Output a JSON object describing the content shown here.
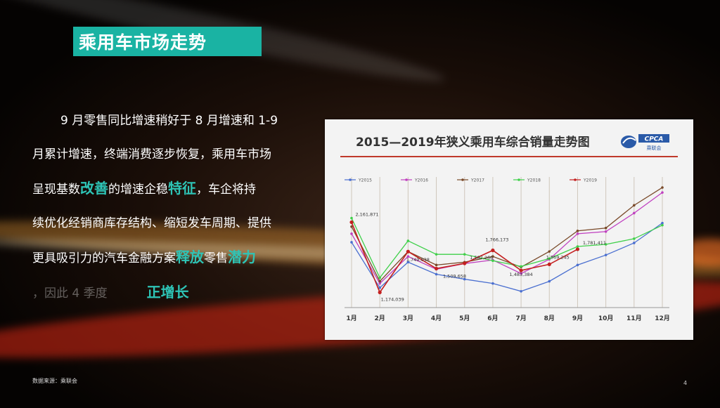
{
  "slide": {
    "title": "乘用车市场走势",
    "source": "数据来源：乘联会",
    "page_number": "4"
  },
  "paragraph": {
    "line1": "9 月零售同比增速稍好于 8 月增速和 1-9",
    "line2": "月累计增速，终端消费逐步恢复，乘用车市场",
    "line3_a": "呈现基数",
    "line3_hl1": "改善",
    "line3_b": "的增速企稳",
    "line3_hl2": "特征",
    "line3_c": "，车企将持",
    "line4": "续优化经销商库存结构、缩短发车周期、提供",
    "line5_a": "更具吸引力的汽车金融方案",
    "line5_hl1": "释放",
    "line5_b": "零售",
    "line5_hl2": "潜力",
    "line6_a": "，因此 4 季度",
    "line6_hl": "正增长"
  },
  "colors": {
    "accent": "#1ab3a3",
    "highlight": "#2ec4b6",
    "chart_title_line": "#c0392b"
  },
  "chart_data": {
    "type": "line",
    "title": "2015—2019年狭义乘用车综合销量走势图",
    "logo_text": "CPCA",
    "logo_sub": "乘联会",
    "categories": [
      "1月",
      "2月",
      "3月",
      "4月",
      "5月",
      "6月",
      "7月",
      "8月",
      "9月",
      "10月",
      "11月",
      "12月"
    ],
    "ylim": [
      1000000,
      2700000
    ],
    "series": [
      {
        "name": "Y2015",
        "color": "#4a6fd0",
        "values": [
          1880000,
          1240000,
          1600000,
          1430000,
          1360000,
          1300000,
          1190000,
          1330000,
          1560000,
          1700000,
          1870000,
          2150000
        ]
      },
      {
        "name": "Y2016",
        "color": "#c040c0",
        "values": [
          2000000,
          1300000,
          1680000,
          1500000,
          1580000,
          1630000,
          1440000,
          1640000,
          2000000,
          2030000,
          2290000,
          2580000
        ]
      },
      {
        "name": "Y2017",
        "color": "#7a4a2a",
        "values": [
          2100000,
          1330000,
          1750000,
          1560000,
          1600000,
          1680000,
          1530000,
          1750000,
          2040000,
          2080000,
          2400000,
          2650000
        ]
      },
      {
        "name": "Y2018",
        "color": "#3fd04a",
        "values": [
          2220000,
          1380000,
          1900000,
          1710000,
          1710000,
          1620000,
          1540000,
          1650000,
          1820000,
          1850000,
          1930000,
          2120000
        ]
      },
      {
        "name": "Y2019",
        "color": "#c42020",
        "values": [
          2161871,
          1174039,
          1749038,
          1509658,
          1582266,
          1766173,
          1483384,
          1569245,
          1781411,
          null,
          null,
          null
        ]
      }
    ],
    "data_labels": [
      {
        "series": "Y2019",
        "index": 0,
        "text": "2,161,871"
      },
      {
        "series": "Y2019",
        "index": 1,
        "text": "1,174,039"
      },
      {
        "series": "Y2019",
        "index": 2,
        "text": "1,749,038"
      },
      {
        "series": "Y2019",
        "index": 3,
        "text": "1,509,658"
      },
      {
        "series": "Y2019",
        "index": 4,
        "text": "1,582,266"
      },
      {
        "series": "Y2019",
        "index": 5,
        "text": "1,766,173"
      },
      {
        "series": "Y2019",
        "index": 6,
        "text": "1,483,384"
      },
      {
        "series": "Y2019",
        "index": 7,
        "text": "1,569,245"
      },
      {
        "series": "Y2019",
        "index": 8,
        "text": "1,781,411"
      }
    ],
    "legend_position": "top",
    "grid": true
  }
}
